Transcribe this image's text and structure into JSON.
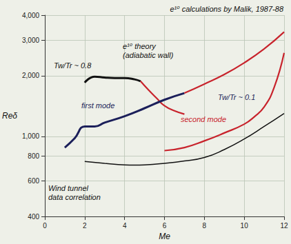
{
  "chart_data": {
    "type": "line",
    "title": "e¹⁰ calculations by Malik, 1987-88",
    "x_label": "Me",
    "y_label": "Reδ",
    "log": "y",
    "grid": true,
    "xlim": [
      0,
      12
    ],
    "xticks": [
      0,
      2,
      4,
      6,
      8,
      10,
      12
    ],
    "ylim": [
      400,
      4000
    ],
    "yticks": [
      400,
      600,
      800,
      1000,
      2000,
      3000,
      4000
    ],
    "series": [
      {
        "color": "#111111",
        "line_style": "thick",
        "x": [
          2,
          2.5,
          3,
          3.5,
          4,
          4.5,
          4.8
        ],
        "values": [
          1850,
          1980,
          1960,
          1950,
          1950,
          1920,
          1880
        ]
      },
      {
        "color": "#c8232c",
        "line_style": "medium",
        "x": [
          4.8,
          5.2,
          5.6,
          6,
          6.5,
          7
        ],
        "values": [
          1880,
          1700,
          1550,
          1420,
          1340,
          1290
        ]
      },
      {
        "color": "#1b1f5a",
        "line_style": "thick",
        "x": [
          1,
          1.5,
          2,
          2.5,
          3,
          4,
          5,
          6,
          7
        ],
        "values": [
          880,
          980,
          1120,
          1120,
          1170,
          1260,
          1380,
          1520,
          1640
        ]
      },
      {
        "color": "#c8232c",
        "line_style": "medium",
        "x": [
          7,
          8,
          9,
          10,
          11,
          12
        ],
        "values": [
          1640,
          1820,
          2030,
          2320,
          2720,
          3300
        ]
      },
      {
        "color": "#c8232c",
        "line_style": "medium",
        "x": [
          6,
          7,
          8,
          9,
          10,
          10.5,
          11,
          11.5,
          12
        ],
        "values": [
          850,
          880,
          950,
          1040,
          1150,
          1250,
          1400,
          1750,
          2600
        ]
      },
      {
        "color": "#111111",
        "line_style": "thin",
        "x": [
          2,
          3,
          4,
          4.5,
          5,
          6,
          7,
          8,
          9,
          10,
          11,
          12
        ],
        "values": [
          750,
          735,
          722,
          720,
          722,
          735,
          755,
          785,
          860,
          970,
          1120,
          1300
        ]
      }
    ],
    "annotations": [
      {
        "text": "e¹⁰ theory\n(adiabatic wall)",
        "color": "#111111"
      },
      {
        "text": "Tw/Tr ~ 0.8",
        "color": "#111111"
      },
      {
        "text": "first mode",
        "color": "#1b1f5a"
      },
      {
        "text": "second mode",
        "color": "#c8232c"
      },
      {
        "text": "Tw/Tr ~ 0.1",
        "color": "#1b1f5a"
      },
      {
        "text": "Wind tunnel data correlation",
        "color": "#111111"
      }
    ]
  }
}
